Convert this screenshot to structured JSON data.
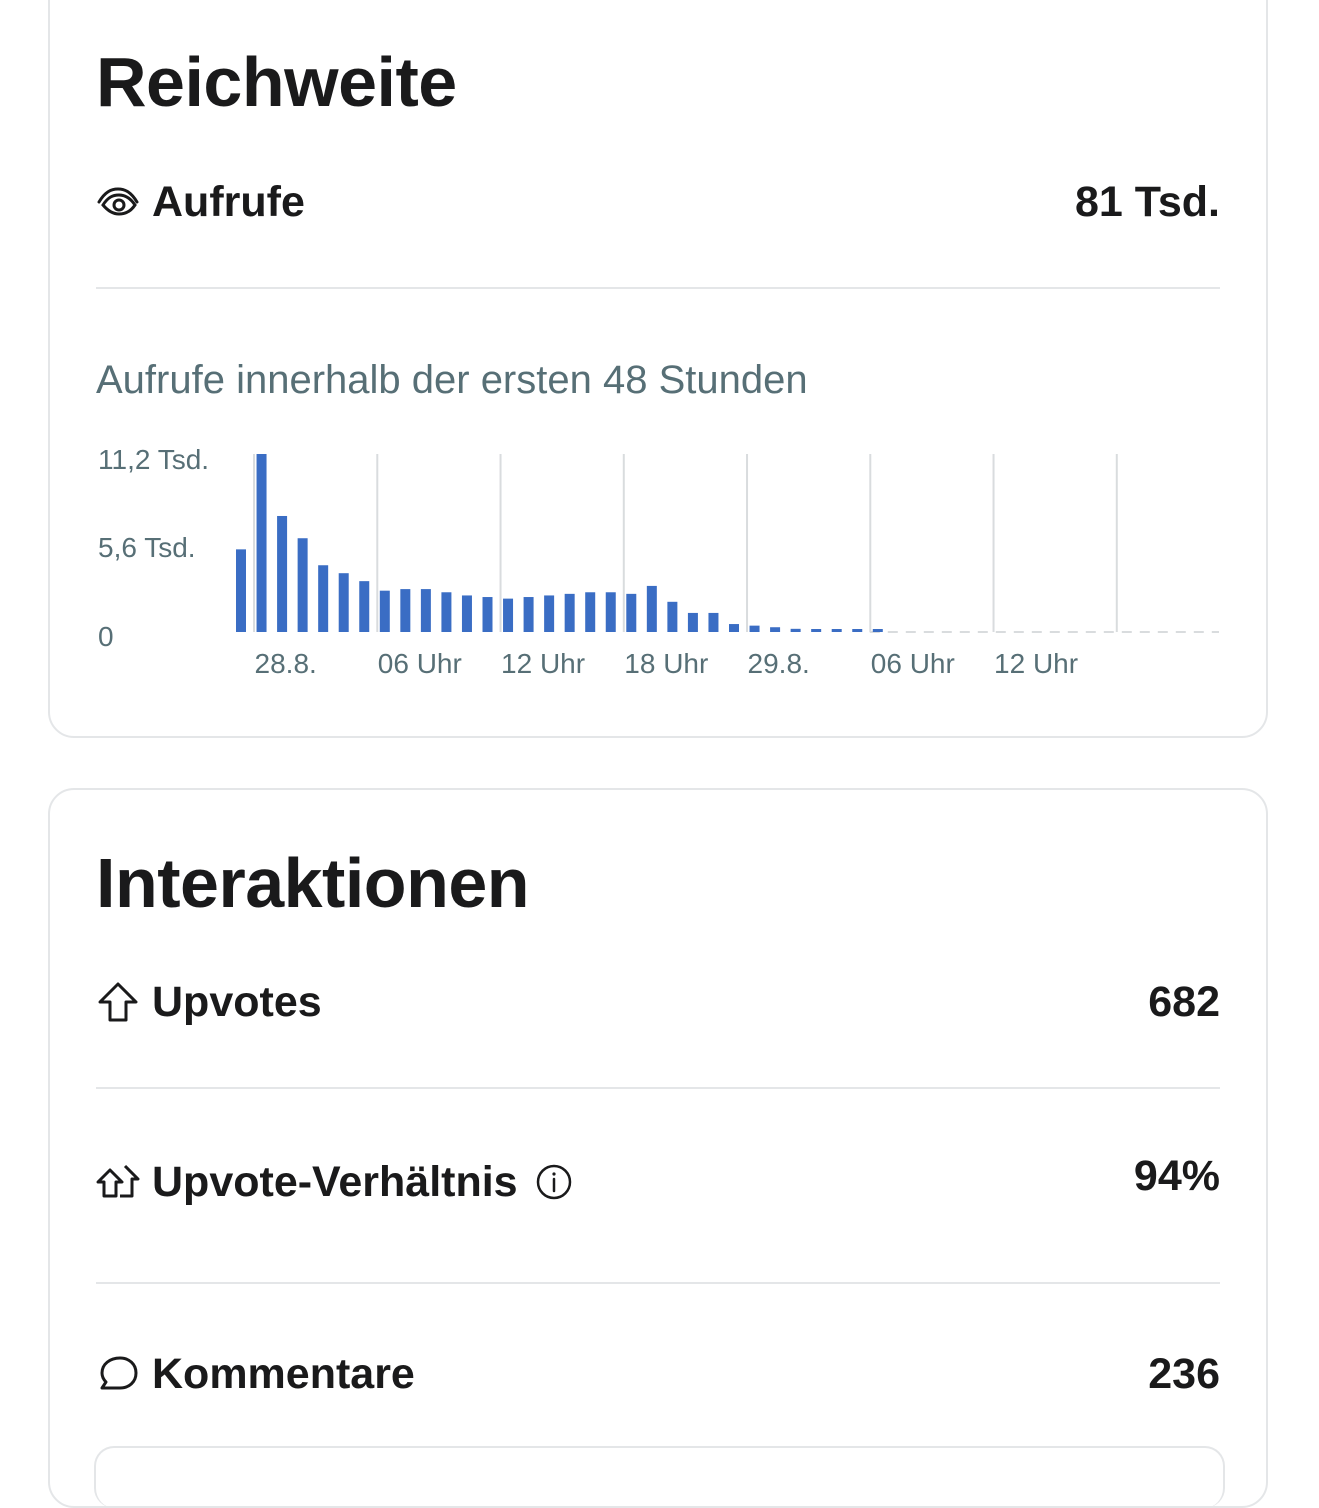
{
  "reach": {
    "title": "Reichweite",
    "views_label": "Aufrufe",
    "views_value": "81 Tsd.",
    "chart_title": "Aufrufe innerhalb der ersten 48 Stunden"
  },
  "interactions": {
    "title": "Interaktionen",
    "upvotes_label": "Upvotes",
    "upvotes_value": "682",
    "ratio_label": "Upvote-Verhältnis",
    "ratio_value": "94%",
    "comments_label": "Kommentare",
    "comments_value": "236"
  },
  "colors": {
    "bar": "#3a6dc4",
    "grid": "#d9dcde",
    "muted_text": "#576f76"
  },
  "chart_data": {
    "type": "bar",
    "title": "Aufrufe innerhalb der ersten 48 Stunden",
    "xlabel": "",
    "ylabel": "",
    "y_tick_labels": [
      "11,2 Tsd.",
      "5,6 Tsd.",
      "0"
    ],
    "y_ticks": [
      11200,
      5600,
      0
    ],
    "ylim": [
      0,
      11200
    ],
    "x_tick_labels": [
      "28.8.",
      "06 Uhr",
      "12 Uhr",
      "18 Uhr",
      "29.8.",
      "06 Uhr",
      "12 Uhr"
    ],
    "x_tick_hours": [
      1,
      7,
      13,
      19,
      25,
      31,
      37
    ],
    "x_range_hours": [
      0,
      48
    ],
    "grid": "vertical",
    "series": [
      {
        "values": [
          5200,
          11200,
          7300,
          5900,
          4200,
          3700,
          3200,
          2600,
          2700,
          2700,
          2500,
          2300,
          2200,
          2100,
          2200,
          2300,
          2400,
          2500,
          2500,
          2400,
          2900,
          1900,
          1200,
          1200,
          500,
          400,
          300,
          200,
          150,
          120,
          100,
          80,
          60,
          40,
          30,
          30,
          20,
          20,
          20,
          20,
          20,
          20,
          20,
          20,
          20,
          20,
          20,
          20
        ]
      }
    ]
  }
}
